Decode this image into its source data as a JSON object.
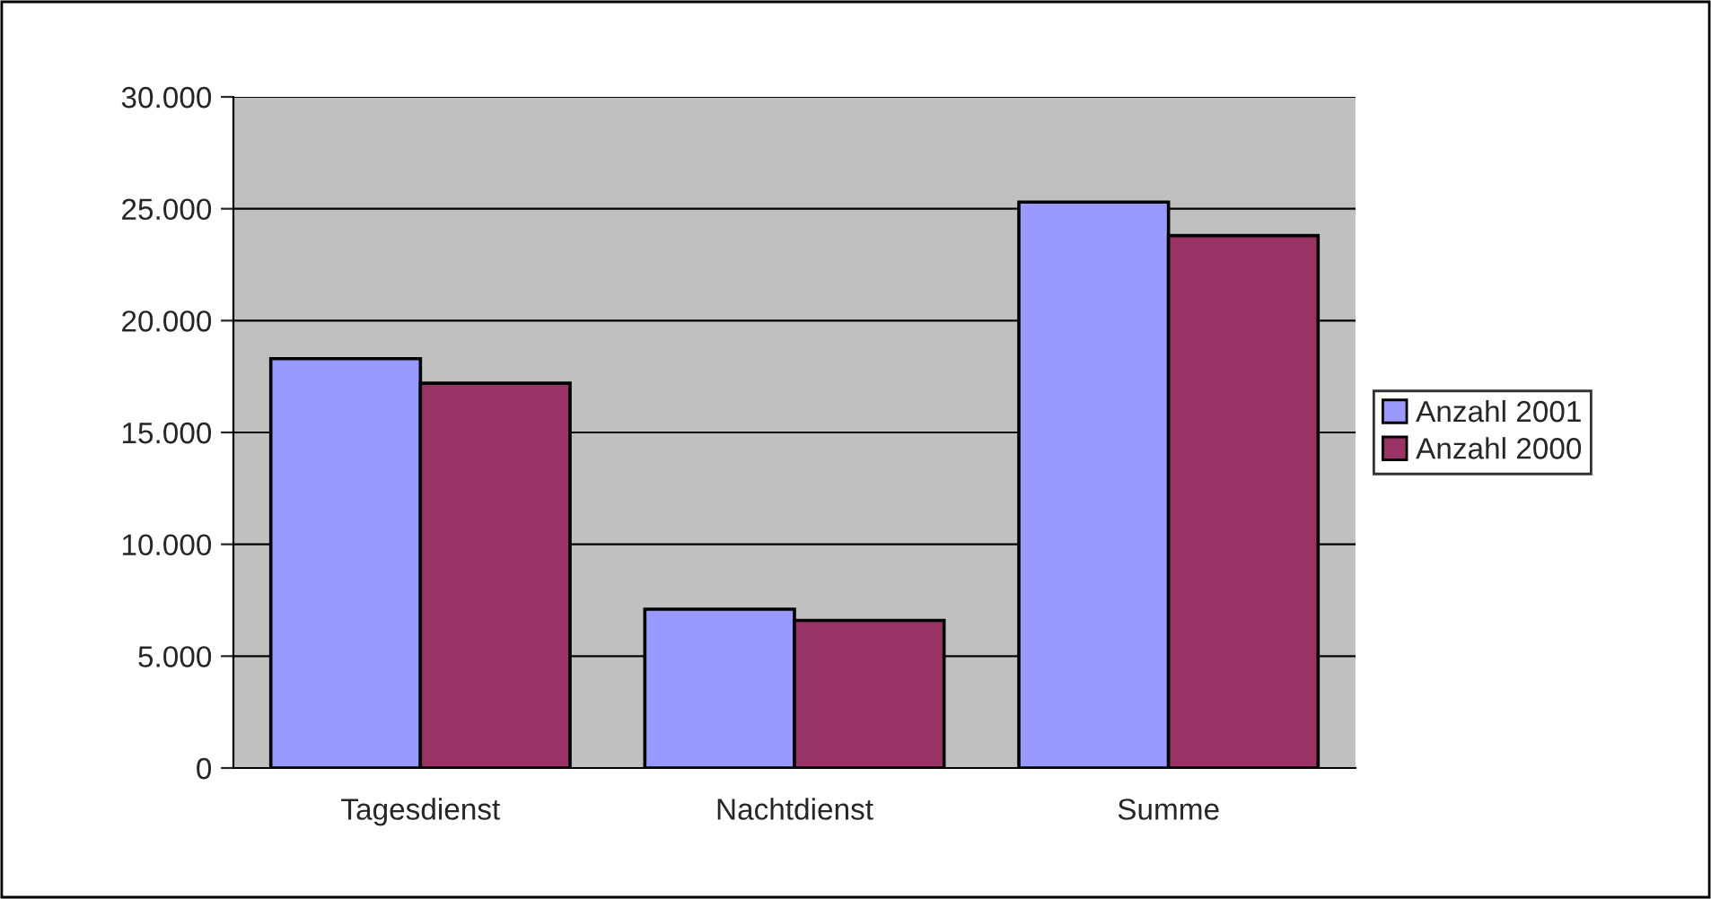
{
  "chart_data": {
    "type": "bar",
    "categories": [
      "Tagesdienst",
      "Nachtdienst",
      "Summe"
    ],
    "series": [
      {
        "name": "Anzahl 2001",
        "color": "#9999ff",
        "values": [
          18300,
          7100,
          25300
        ]
      },
      {
        "name": "Anzahl 2000",
        "color": "#993366",
        "values": [
          17200,
          6600,
          23800
        ]
      }
    ],
    "ylim": [
      0,
      30000
    ],
    "yticks": [
      0,
      {
        "value": 5000,
        "label": "5.000"
      },
      {
        "value": 10000,
        "label": "10.000"
      },
      {
        "value": 15000,
        "label": "15.000"
      },
      {
        "value": 20000,
        "label": "20.000"
      },
      {
        "value": 25000,
        "label": "25.000"
      },
      {
        "value": 30000,
        "label": "30.000"
      }
    ],
    "grid": "y",
    "legend": "right"
  }
}
